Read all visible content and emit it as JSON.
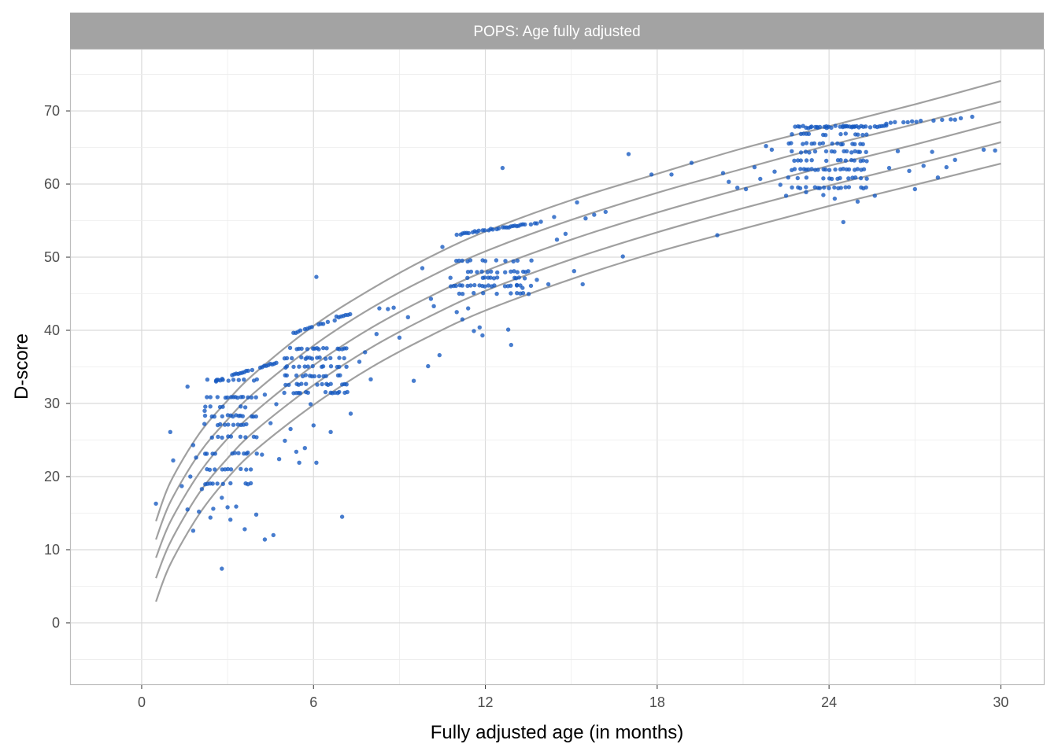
{
  "chart_data": {
    "type": "scatter",
    "title": "POPS: Age fully adjusted",
    "xlabel": "Fully adjusted age (in months)",
    "ylabel": "D-score",
    "xlim": [
      -2.5,
      31.5
    ],
    "ylim": [
      -8.5,
      78.5
    ],
    "x_ticks": [
      0,
      6,
      12,
      18,
      24,
      30
    ],
    "x_tick_labels": [
      "0",
      "6",
      "12",
      "18",
      "24",
      "30"
    ],
    "y_ticks": [
      0,
      10,
      20,
      30,
      40,
      50,
      60,
      70
    ],
    "y_tick_labels": [
      "0",
      "10",
      "20",
      "30",
      "40",
      "50",
      "60",
      "70"
    ],
    "grid": true,
    "point_color": "#1558c0",
    "curve_color": "#a0a0a0",
    "strip_color": "#a3a3a3",
    "reference_curves": {
      "x": [
        0.5,
        1,
        2,
        3,
        4,
        6,
        8,
        10,
        12,
        15,
        18,
        21,
        24,
        27,
        30
      ],
      "series": [
        [
          13.9,
          19.2,
          25.8,
          30.4,
          34.3,
          40.6,
          45.6,
          49.9,
          53.5,
          57.8,
          61.4,
          64.9,
          67.9,
          70.9,
          74.1
        ],
        [
          11.4,
          16.5,
          23.1,
          27.8,
          31.7,
          37.9,
          43.0,
          47.2,
          50.8,
          55.1,
          58.8,
          62.1,
          65.3,
          68.2,
          71.3
        ],
        [
          8.9,
          13.8,
          20.4,
          25.2,
          29.0,
          35.2,
          40.3,
          44.5,
          48.1,
          52.4,
          56.1,
          59.4,
          62.5,
          65.4,
          68.5
        ],
        [
          6.1,
          11.0,
          17.7,
          22.5,
          26.4,
          32.5,
          37.6,
          41.8,
          45.4,
          49.7,
          53.4,
          56.7,
          59.8,
          62.7,
          65.7
        ],
        [
          2.9,
          8.0,
          14.8,
          19.8,
          23.7,
          29.8,
          34.9,
          39.1,
          42.7,
          47.0,
          50.7,
          53.9,
          57.0,
          59.9,
          62.8
        ]
      ]
    },
    "clusters": [
      {
        "x": [
          2.2,
          4.0
        ],
        "rows": [
          19.0,
          21.0,
          23.2,
          25.4,
          27.1,
          28.3,
          29.5,
          30.8,
          33.2
        ],
        "step": 0.09
      },
      {
        "x": [
          5.0,
          7.2
        ],
        "rows": [
          31.5,
          32.6,
          33.8,
          35.0,
          36.2,
          37.5
        ],
        "step": 0.08
      },
      {
        "x": [
          10.8,
          13.6
        ],
        "rows": [
          45.0,
          46.1,
          47.2,
          48.0,
          49.5
        ],
        "step": 0.1
      },
      {
        "x": [
          22.6,
          25.4
        ],
        "rows": [
          59.5,
          60.8,
          62.0,
          63.2,
          64.4,
          65.5,
          66.8,
          67.9
        ],
        "step": 0.1
      }
    ],
    "top_rows": [
      {
        "x0": 2.6,
        "x1": 4.7,
        "y0": 33.2,
        "y1": 35.6,
        "step": 0.07
      },
      {
        "x0": 5.3,
        "x1": 6.8,
        "y0": 39.6,
        "y1": 41.5,
        "step": 0.08
      },
      {
        "x0": 6.8,
        "x1": 7.6,
        "y0": 41.8,
        "y1": 42.5,
        "step": 0.08
      },
      {
        "x0": 11.0,
        "x1": 14.0,
        "y0": 53.1,
        "y1": 54.8,
        "step": 0.07
      },
      {
        "x0": 23.2,
        "x1": 26.0,
        "y0": 67.7,
        "y1": 67.9,
        "step": 0.08
      },
      {
        "x0": 26.0,
        "x1": 28.8,
        "y0": 68.3,
        "y1": 68.9,
        "step": 0.15
      }
    ],
    "points": [
      [
        0.5,
        16.3
      ],
      [
        1.0,
        26.1
      ],
      [
        1.1,
        22.2
      ],
      [
        1.4,
        18.7
      ],
      [
        1.6,
        32.3
      ],
      [
        1.6,
        15.5
      ],
      [
        1.7,
        20.0
      ],
      [
        1.8,
        12.6
      ],
      [
        1.8,
        24.3
      ],
      [
        1.9,
        22.6
      ],
      [
        2.0,
        15.2
      ],
      [
        2.1,
        18.3
      ],
      [
        2.2,
        29.0
      ],
      [
        2.4,
        14.4
      ],
      [
        2.5,
        15.6
      ],
      [
        2.6,
        33.0
      ],
      [
        2.8,
        17.1
      ],
      [
        2.8,
        7.4
      ],
      [
        3.0,
        15.8
      ],
      [
        3.1,
        14.1
      ],
      [
        3.3,
        15.9
      ],
      [
        3.6,
        12.8
      ],
      [
        4.0,
        14.8
      ],
      [
        4.3,
        11.4
      ],
      [
        4.6,
        12.0
      ],
      [
        4.2,
        23.0
      ],
      [
        4.3,
        31.2
      ],
      [
        4.5,
        27.3
      ],
      [
        4.7,
        29.9
      ],
      [
        4.8,
        22.4
      ],
      [
        5.0,
        24.9
      ],
      [
        5.2,
        26.5
      ],
      [
        5.4,
        23.4
      ],
      [
        5.5,
        21.9
      ],
      [
        5.7,
        23.9
      ],
      [
        5.9,
        29.9
      ],
      [
        6.0,
        27.0
      ],
      [
        6.1,
        21.9
      ],
      [
        6.1,
        47.3
      ],
      [
        6.6,
        26.1
      ],
      [
        7.0,
        14.5
      ],
      [
        7.3,
        28.6
      ],
      [
        7.6,
        35.7
      ],
      [
        7.8,
        37.0
      ],
      [
        8.0,
        33.3
      ],
      [
        8.2,
        39.5
      ],
      [
        8.3,
        43.0
      ],
      [
        8.6,
        42.9
      ],
      [
        8.8,
        43.1
      ],
      [
        9.0,
        39.0
      ],
      [
        9.3,
        41.8
      ],
      [
        9.5,
        33.1
      ],
      [
        9.8,
        48.5
      ],
      [
        10.0,
        35.1
      ],
      [
        10.1,
        44.3
      ],
      [
        10.4,
        36.6
      ],
      [
        10.5,
        51.4
      ],
      [
        10.2,
        43.3
      ],
      [
        11.0,
        42.5
      ],
      [
        11.2,
        41.5
      ],
      [
        11.4,
        43.0
      ],
      [
        11.6,
        39.9
      ],
      [
        11.8,
        40.4
      ],
      [
        11.9,
        39.3
      ],
      [
        12.6,
        62.2
      ],
      [
        12.8,
        40.1
      ],
      [
        12.9,
        38.0
      ],
      [
        13.1,
        46.2
      ],
      [
        13.3,
        45.8
      ],
      [
        13.8,
        46.9
      ],
      [
        14.2,
        46.3
      ],
      [
        14.4,
        55.5
      ],
      [
        14.5,
        52.4
      ],
      [
        14.8,
        53.2
      ],
      [
        15.2,
        57.5
      ],
      [
        15.1,
        48.1
      ],
      [
        15.4,
        46.3
      ],
      [
        15.5,
        55.3
      ],
      [
        15.8,
        55.8
      ],
      [
        16.2,
        56.2
      ],
      [
        16.8,
        50.1
      ],
      [
        17.0,
        64.1
      ],
      [
        17.8,
        61.3
      ],
      [
        18.5,
        61.3
      ],
      [
        19.2,
        62.9
      ],
      [
        20.1,
        53.0
      ],
      [
        20.3,
        61.5
      ],
      [
        20.5,
        60.3
      ],
      [
        20.8,
        59.5
      ],
      [
        21.1,
        59.3
      ],
      [
        21.4,
        62.3
      ],
      [
        21.6,
        60.7
      ],
      [
        21.8,
        65.2
      ],
      [
        22.0,
        64.7
      ],
      [
        22.1,
        61.7
      ],
      [
        22.3,
        59.9
      ],
      [
        22.5,
        58.4
      ],
      [
        23.2,
        58.9
      ],
      [
        23.8,
        58.5
      ],
      [
        24.2,
        58.0
      ],
      [
        24.5,
        54.8
      ],
      [
        25.0,
        57.6
      ],
      [
        25.6,
        58.4
      ],
      [
        26.1,
        62.2
      ],
      [
        26.4,
        64.5
      ],
      [
        26.8,
        61.8
      ],
      [
        27.0,
        59.3
      ],
      [
        27.3,
        62.5
      ],
      [
        27.6,
        64.4
      ],
      [
        27.8,
        60.9
      ],
      [
        28.1,
        62.3
      ],
      [
        28.4,
        63.3
      ],
      [
        28.6,
        69.0
      ],
      [
        29.0,
        69.2
      ],
      [
        29.4,
        64.7
      ],
      [
        29.8,
        64.6
      ]
    ]
  }
}
